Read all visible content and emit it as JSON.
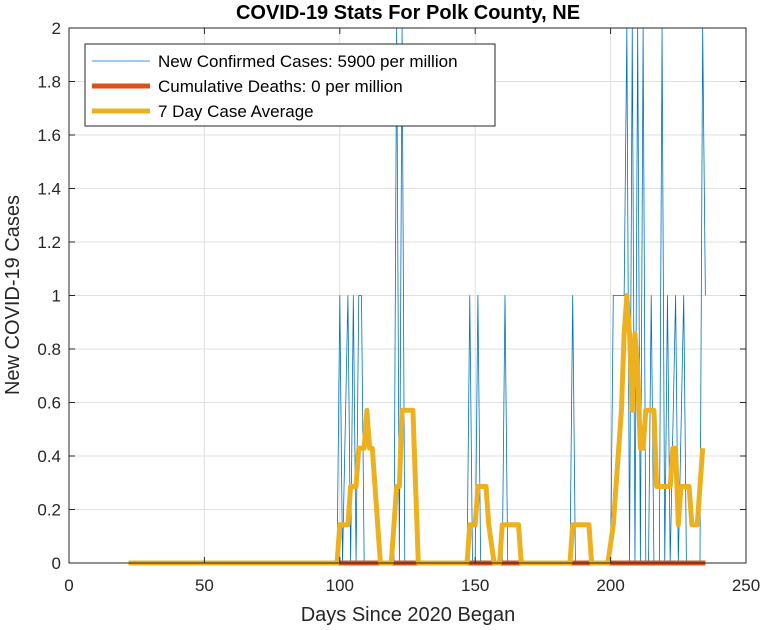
{
  "chart_data": {
    "type": "line",
    "title": "COVID-19 Stats For Polk County, NE",
    "xlabel": "Days Since 2020 Began",
    "ylabel": "New COVID-19 Cases",
    "xlim": [
      0,
      250
    ],
    "ylim": [
      0,
      2
    ],
    "xticks": [
      0,
      50,
      100,
      150,
      200,
      250
    ],
    "yticks": [
      0,
      0.2,
      0.4,
      0.6,
      0.8,
      1,
      1.2,
      1.4,
      1.6,
      1.8,
      2
    ],
    "grid": true,
    "legend_position": "top-left",
    "series": [
      {
        "name": "New Confirmed Cases: 5900 per million",
        "color": "#0072BD",
        "width": 0.8,
        "points": [
          [
            22,
            0
          ],
          [
            99,
            0
          ],
          [
            100,
            1
          ],
          [
            101,
            0
          ],
          [
            103,
            1
          ],
          [
            104,
            0
          ],
          [
            105,
            1
          ],
          [
            106,
            0
          ],
          [
            107,
            1
          ],
          [
            108,
            1
          ],
          [
            109,
            0
          ],
          [
            120,
            0
          ],
          [
            121,
            2
          ],
          [
            122,
            0
          ],
          [
            123,
            2
          ],
          [
            124,
            0
          ],
          [
            147,
            0
          ],
          [
            148,
            1
          ],
          [
            149,
            0
          ],
          [
            150,
            0
          ],
          [
            151,
            1
          ],
          [
            152,
            0
          ],
          [
            160,
            0
          ],
          [
            161,
            1
          ],
          [
            162,
            0
          ],
          [
            185,
            0
          ],
          [
            186,
            1
          ],
          [
            187,
            0
          ],
          [
            200,
            0
          ],
          [
            201,
            1
          ],
          [
            205,
            1
          ],
          [
            206,
            2
          ],
          [
            207,
            0
          ],
          [
            208,
            2
          ],
          [
            209,
            0
          ],
          [
            210,
            2
          ],
          [
            211,
            0
          ],
          [
            212,
            2
          ],
          [
            213,
            0
          ],
          [
            214,
            0
          ],
          [
            215,
            1
          ],
          [
            216,
            0
          ],
          [
            218,
            0
          ],
          [
            219,
            2
          ],
          [
            220,
            0
          ],
          [
            221,
            1
          ],
          [
            222,
            0
          ],
          [
            224,
            1
          ],
          [
            225,
            0
          ],
          [
            227,
            1
          ],
          [
            228,
            0
          ],
          [
            233,
            0
          ],
          [
            234,
            2
          ],
          [
            235,
            1
          ]
        ]
      },
      {
        "name": "Cumulative Deaths: 0 per million",
        "color": "#D95319",
        "width": 5,
        "points": [
          [
            22,
            0
          ],
          [
            235,
            0
          ]
        ]
      },
      {
        "name": "7 Day Case Average",
        "color": "#EDB120",
        "width": 5,
        "points": [
          [
            22,
            0
          ],
          [
            99,
            0
          ],
          [
            100,
            0.143
          ],
          [
            103,
            0.143
          ],
          [
            104,
            0.286
          ],
          [
            106,
            0.286
          ],
          [
            107,
            0.429
          ],
          [
            109,
            0.429
          ],
          [
            110,
            0.571
          ],
          [
            111,
            0.429
          ],
          [
            112,
            0.429
          ],
          [
            113,
            0.286
          ],
          [
            114,
            0.143
          ],
          [
            115,
            0
          ],
          [
            119,
            0
          ],
          [
            121,
            0.286
          ],
          [
            122,
            0.286
          ],
          [
            123,
            0.571
          ],
          [
            127,
            0.571
          ],
          [
            128,
            0.286
          ],
          [
            129,
            0
          ],
          [
            147,
            0
          ],
          [
            148,
            0.143
          ],
          [
            150,
            0.143
          ],
          [
            151,
            0.286
          ],
          [
            154,
            0.286
          ],
          [
            155,
            0.143
          ],
          [
            157,
            0
          ],
          [
            159,
            0
          ],
          [
            160,
            0.143
          ],
          [
            166,
            0.143
          ],
          [
            167,
            0
          ],
          [
            185,
            0
          ],
          [
            186,
            0.143
          ],
          [
            192,
            0.143
          ],
          [
            193,
            0
          ],
          [
            199,
            0
          ],
          [
            201,
            0.143
          ],
          [
            203,
            0.429
          ],
          [
            204,
            0.571
          ],
          [
            205,
            0.857
          ],
          [
            206,
            1.0
          ],
          [
            207,
            0.857
          ],
          [
            208,
            0.571
          ],
          [
            209,
            0.857
          ],
          [
            210,
            0.714
          ],
          [
            211,
            0.429
          ],
          [
            212,
            0.429
          ],
          [
            213,
            0.571
          ],
          [
            216,
            0.571
          ],
          [
            217,
            0.286
          ],
          [
            222,
            0.286
          ],
          [
            223,
            0.429
          ],
          [
            224,
            0.429
          ],
          [
            225,
            0.143
          ],
          [
            226,
            0.286
          ],
          [
            229,
            0.286
          ],
          [
            230,
            0.143
          ],
          [
            232,
            0.143
          ],
          [
            233,
            0.286
          ],
          [
            234,
            0.429
          ]
        ]
      }
    ]
  }
}
